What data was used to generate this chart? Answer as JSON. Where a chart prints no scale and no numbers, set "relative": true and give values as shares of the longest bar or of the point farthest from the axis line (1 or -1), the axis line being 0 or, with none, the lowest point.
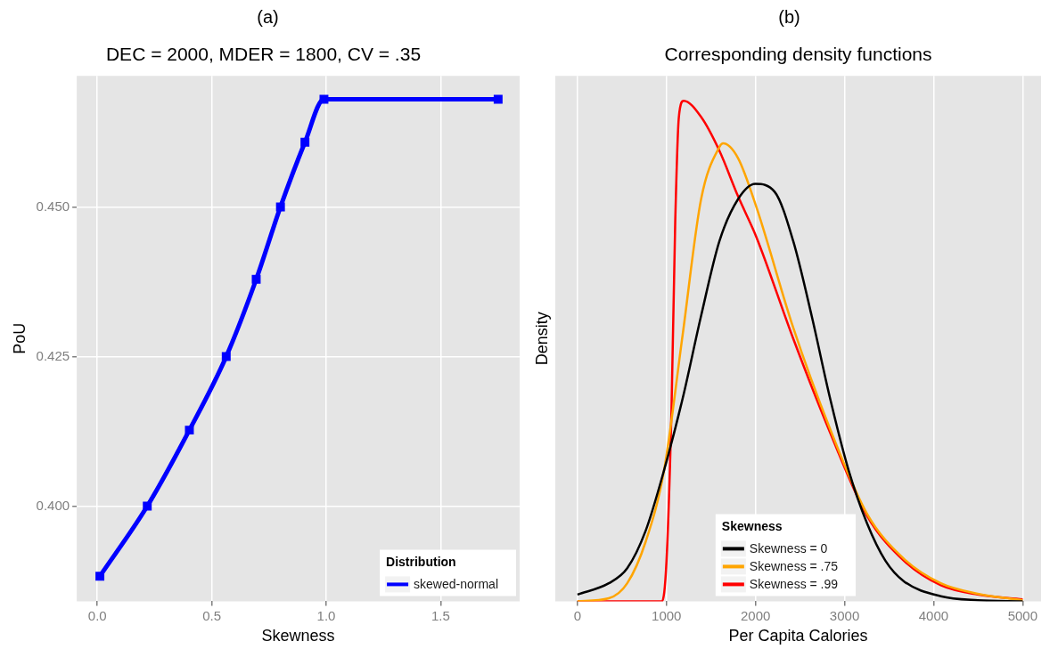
{
  "chart_data": [
    {
      "type": "line",
      "annotations": [
        "(a)"
      ],
      "title": "DEC = 2000, MDER = 1800, CV = .35",
      "xlabel": "Skewness",
      "ylabel": "PoU",
      "legend_title": "Distribution",
      "legend": "bottom right",
      "grid": true,
      "marker": "square",
      "xlim": [
        -0.09,
        1.845
      ],
      "xticks": [
        {
          "value": 0,
          "label": "0.0"
        },
        0.5,
        {
          "value": 1,
          "label": "1.0"
        },
        1.5
      ],
      "ylim": [
        0.3841,
        0.4719
      ],
      "yticks": [
        {
          "value": 0.4,
          "label": "0.400"
        },
        0.425,
        {
          "value": 0.45,
          "label": "0.450"
        }
      ],
      "series": [
        {
          "name": "skewed-normal",
          "color": "#0000ff",
          "x": [
            0.011,
            0.218,
            0.402,
            0.563,
            0.694,
            0.8,
            0.907,
            0.99,
            1.751
          ],
          "values": [
            0.3883,
            0.4,
            0.4127,
            0.425,
            0.4379,
            0.45,
            0.4608,
            0.468,
            0.468
          ]
        }
      ]
    },
    {
      "type": "line",
      "annotations": [
        "(b)"
      ],
      "title": "Corresponding density functions",
      "xlabel": "Per Capita Calories",
      "ylabel": "Density",
      "legend_title": "Skewness",
      "legend": "bottom",
      "grid": "x",
      "relative": true,
      "xlim": [
        -249,
        5207
      ],
      "xticks": [
        0,
        1000,
        2000,
        3000,
        4000,
        5000
      ],
      "series": [
        {
          "name": "Skewness = 0",
          "color": "#000000",
          "x": [
            0,
            352,
            559,
            766,
            973,
            1181,
            1388,
            1595,
            1802,
            1997,
            2216,
            2423,
            2631,
            2838,
            3045,
            3252,
            3459,
            3666,
            4081,
            4495,
            5000
          ],
          "values": [
            0.0135,
            0.036,
            0.066,
            0.141,
            0.262,
            0.405,
            0.57,
            0.72,
            0.803,
            0.834,
            0.818,
            0.72,
            0.57,
            0.405,
            0.262,
            0.156,
            0.081,
            0.04,
            0.01,
            0.002,
            0
          ]
        },
        {
          "name": "Skewness = .75",
          "color": "#ffa500",
          "x": [
            0,
            352,
            559,
            766,
            973,
            1181,
            1388,
            1595,
            1636,
            1802,
            2009,
            2423,
            2838,
            3252,
            3666,
            4081,
            4495,
            5000
          ],
          "values": [
            0,
            0.006,
            0.036,
            0.119,
            0.262,
            0.532,
            0.803,
            0.908,
            0.915,
            0.886,
            0.788,
            0.547,
            0.344,
            0.175,
            0.085,
            0.036,
            0.015,
            0.002
          ]
        },
        {
          "name": "Skewness = .99",
          "color": "#ff0000",
          "x": [
            0,
            950,
            1000,
            1056,
            1098,
            1139,
            1193,
            1388,
            1595,
            1802,
            2009,
            2423,
            2838,
            3252,
            3666,
            4081,
            4495,
            5000
          ],
          "values": [
            0,
            0,
            0.08,
            0.382,
            0.758,
            0.968,
            1,
            0.968,
            0.9,
            0.81,
            0.728,
            0.525,
            0.337,
            0.171,
            0.081,
            0.032,
            0.0135,
            0.004
          ]
        }
      ]
    }
  ]
}
